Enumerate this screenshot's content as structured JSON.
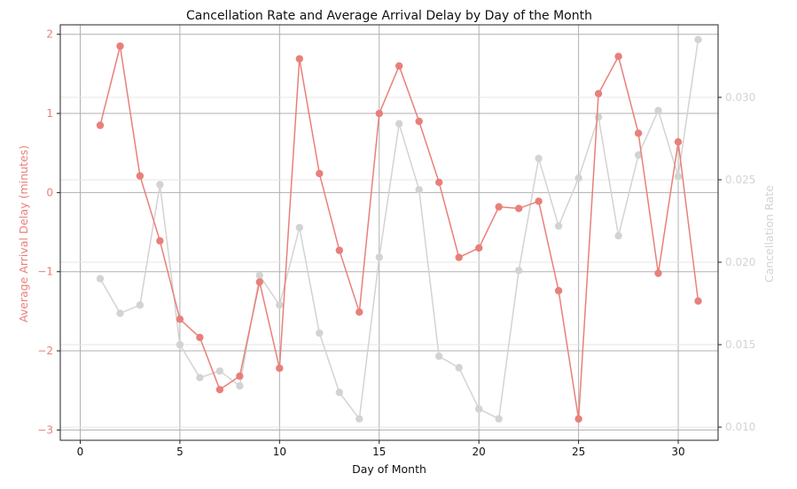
{
  "chart_data": {
    "type": "line",
    "title": "Cancellation Rate and Average Arrival Delay by Day of the Month",
    "xlabel": "Day of Month",
    "ylabel_left": "Average Arrival Delay (minutes)",
    "ylabel_right": "Cancellation Rate",
    "xlim": [
      -1,
      32
    ],
    "ylim_left": [
      -3.13,
      2.12
    ],
    "ylim_right": [
      0.0092,
      0.0344
    ],
    "x_ticks": [
      0,
      5,
      10,
      15,
      20,
      25,
      30
    ],
    "y_left_ticks": [
      -3,
      -2,
      -1,
      0,
      1,
      2
    ],
    "y_right_ticks": [
      0.01,
      0.015,
      0.02,
      0.025,
      0.03
    ],
    "y_right_tick_labels": [
      "0.010",
      "0.015",
      "0.020",
      "0.025",
      "0.030"
    ],
    "grid": true,
    "x": [
      1,
      2,
      3,
      4,
      5,
      6,
      7,
      8,
      9,
      10,
      11,
      12,
      13,
      14,
      15,
      16,
      17,
      18,
      19,
      20,
      21,
      22,
      23,
      24,
      25,
      26,
      27,
      28,
      29,
      30,
      31
    ],
    "series": [
      {
        "axis": "left",
        "color": "#e8807a",
        "values": [
          0.85,
          1.85,
          0.21,
          -0.61,
          -1.6,
          -1.83,
          -2.49,
          -2.32,
          -1.13,
          -2.22,
          1.69,
          0.24,
          -0.73,
          -1.51,
          1.0,
          1.6,
          0.9,
          0.13,
          -0.82,
          -0.7,
          -0.18,
          -0.2,
          -0.11,
          -1.24,
          -2.86,
          1.25,
          1.72,
          0.75,
          -1.02,
          0.64,
          -1.37
        ]
      },
      {
        "axis": "right",
        "color": "#d3d3d3",
        "values": [
          0.019,
          0.0169,
          0.0174,
          0.0247,
          0.015,
          0.013,
          0.0134,
          0.0125,
          0.0192,
          0.0174,
          0.0221,
          0.0157,
          0.0121,
          0.0105,
          0.0203,
          0.0284,
          0.0244,
          0.0143,
          0.0136,
          0.0111,
          0.0105,
          0.0195,
          0.0263,
          0.0222,
          0.0251,
          0.0288,
          0.0216,
          0.0265,
          0.0292,
          0.0252,
          0.0335
        ]
      }
    ],
    "colors": {
      "left_axis_label": "#e8807a",
      "right_axis_label": "#d3d3d3",
      "left_ticks": "#e8807a",
      "right_ticks": "#d3d3d3"
    }
  }
}
